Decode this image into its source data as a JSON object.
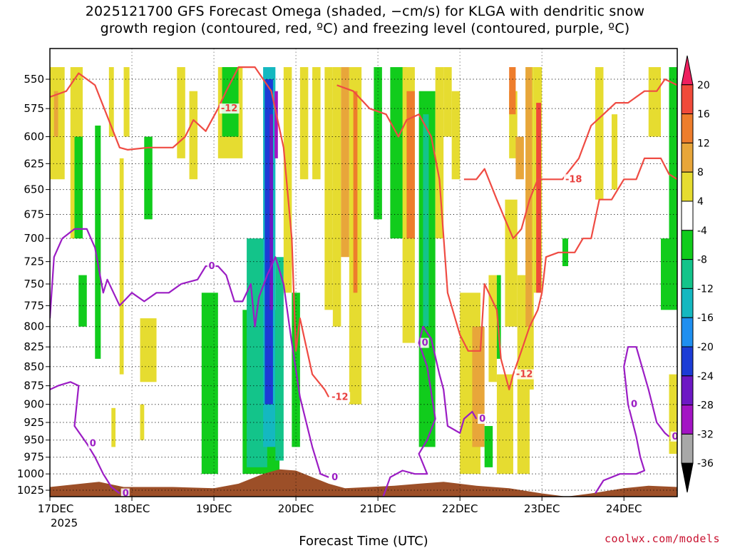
{
  "title_line1": "2025121700 GFS Forecast Omega (shaded, −cm/s) for KLGA with dendritic snow",
  "title_line2": "growth region (contoured, red, ºC) and freezing level (contoured, purple, ºC)",
  "watermark": "coolwx.com/models",
  "chart_data": {
    "type": "heatmap",
    "title": "2025121700 GFS Forecast Omega (shaded, −cm/s) for KLGA with dendritic snow growth region (contoured, red, ºC) and freezing level (contoured, purple, ºC)",
    "xlabel": "Forecast Time (UTC)",
    "ylabel": "",
    "x_start": "2025-12-17 00Z",
    "x_ticks": [
      "17DEC",
      "18DEC",
      "19DEC",
      "20DEC",
      "21DEC",
      "22DEC",
      "23DEC",
      "24DEC"
    ],
    "x_tick_sublabel": "2025",
    "x_range_days": [
      0,
      7.65
    ],
    "y_ticks": [
      550,
      575,
      600,
      625,
      650,
      675,
      700,
      725,
      750,
      775,
      800,
      825,
      850,
      875,
      900,
      925,
      950,
      975,
      1000,
      1025
    ],
    "ylim": [
      1035,
      525
    ],
    "y_scale": "log-pressure",
    "grid": true,
    "colorbar": {
      "levels": [
        20,
        16,
        12,
        8,
        4,
        -4,
        -8,
        -12,
        -16,
        -20,
        -24,
        -28,
        -32,
        -36
      ],
      "colors": [
        "#ee1f5f",
        "#f04a3a",
        "#ee7d2c",
        "#e8a63a",
        "#e6dc30",
        "#ffffff",
        "#11cc1c",
        "#13c48a",
        "#14b8c0",
        "#1f8ff0",
        "#1c3cd6",
        "#6d18c4",
        "#a314c4",
        "#a8a8a8",
        "#000000"
      ]
    },
    "omega_cells": [
      {
        "t0": 0.0,
        "t1": 0.18,
        "p0": 540,
        "p1": 640,
        "v": 6
      },
      {
        "t0": 0.05,
        "t1": 0.1,
        "p0": 560,
        "p1": 600,
        "v": 10
      },
      {
        "t0": 0.25,
        "t1": 0.4,
        "p0": 540,
        "p1": 700,
        "v": 6
      },
      {
        "t0": 0.55,
        "t1": 0.62,
        "p0": 590,
        "p1": 840,
        "v": -6
      },
      {
        "t0": 0.72,
        "t1": 0.78,
        "p0": 540,
        "p1": 600,
        "v": 6
      },
      {
        "t0": 0.85,
        "t1": 0.9,
        "p0": 620,
        "p1": 860,
        "v": 5
      },
      {
        "t0": 0.9,
        "t1": 0.97,
        "p0": 540,
        "p1": 600,
        "v": 5
      },
      {
        "t0": 1.15,
        "t1": 1.25,
        "p0": 600,
        "p1": 680,
        "v": -7
      },
      {
        "t0": 1.1,
        "t1": 1.3,
        "p0": 790,
        "p1": 870,
        "v": 5
      },
      {
        "t0": 0.3,
        "t1": 0.4,
        "p0": 600,
        "p1": 700,
        "v": -6
      },
      {
        "t0": 1.55,
        "t1": 1.65,
        "p0": 540,
        "p1": 620,
        "v": 6
      },
      {
        "t0": 1.7,
        "t1": 1.8,
        "p0": 560,
        "p1": 640,
        "v": 5
      },
      {
        "t0": 1.1,
        "t1": 1.15,
        "p0": 900,
        "p1": 950,
        "v": 5
      },
      {
        "t0": 0.75,
        "t1": 0.8,
        "p0": 905,
        "p1": 960,
        "v": 5
      },
      {
        "t0": 0.35,
        "t1": 0.45,
        "p0": 740,
        "p1": 800,
        "v": -6
      },
      {
        "t0": 1.85,
        "t1": 2.05,
        "p0": 760,
        "p1": 1000,
        "v": -6
      },
      {
        "t0": 2.05,
        "t1": 2.35,
        "p0": 540,
        "p1": 620,
        "v": 5
      },
      {
        "t0": 2.35,
        "t1": 2.8,
        "p0": 780,
        "p1": 1000,
        "v": -8
      },
      {
        "t0": 2.1,
        "t1": 2.3,
        "p0": 540,
        "p1": 600,
        "v": -6
      },
      {
        "t0": 2.4,
        "t1": 2.65,
        "p0": 700,
        "p1": 990,
        "v": -10
      },
      {
        "t0": 2.6,
        "t1": 2.75,
        "p0": 540,
        "p1": 960,
        "v": -14
      },
      {
        "t0": 2.62,
        "t1": 2.72,
        "p0": 550,
        "p1": 900,
        "v": -22
      },
      {
        "t0": 2.68,
        "t1": 2.72,
        "p0": 580,
        "p1": 780,
        "v": -26
      },
      {
        "t0": 2.74,
        "t1": 2.78,
        "p0": 560,
        "p1": 620,
        "v": -30
      },
      {
        "t0": 2.75,
        "t1": 2.85,
        "p0": 720,
        "p1": 980,
        "v": -10
      },
      {
        "t0": 2.85,
        "t1": 2.95,
        "p0": 540,
        "p1": 760,
        "v": 6
      },
      {
        "t0": 2.95,
        "t1": 3.05,
        "p0": 760,
        "p1": 960,
        "v": -8
      },
      {
        "t0": 3.05,
        "t1": 3.15,
        "p0": 540,
        "p1": 640,
        "v": 6
      },
      {
        "t0": 3.2,
        "t1": 3.3,
        "p0": 540,
        "p1": 640,
        "v": 6
      },
      {
        "t0": 3.35,
        "t1": 3.45,
        "p0": 540,
        "p1": 780,
        "v": 6
      },
      {
        "t0": 3.45,
        "t1": 3.55,
        "p0": 540,
        "p1": 800,
        "v": 6
      },
      {
        "t0": 3.55,
        "t1": 3.65,
        "p0": 540,
        "p1": 720,
        "v": 10
      },
      {
        "t0": 3.65,
        "t1": 3.8,
        "p0": 540,
        "p1": 900,
        "v": 6
      },
      {
        "t0": 3.7,
        "t1": 3.75,
        "p0": 560,
        "p1": 760,
        "v": 12
      },
      {
        "t0": 3.95,
        "t1": 4.05,
        "p0": 540,
        "p1": 680,
        "v": -7
      },
      {
        "t0": 4.15,
        "t1": 4.35,
        "p0": 540,
        "p1": 700,
        "v": -7
      },
      {
        "t0": 4.3,
        "t1": 4.45,
        "p0": 540,
        "p1": 820,
        "v": 6
      },
      {
        "t0": 4.35,
        "t1": 4.45,
        "p0": 560,
        "p1": 700,
        "v": 12
      },
      {
        "t0": 4.5,
        "t1": 4.7,
        "p0": 560,
        "p1": 960,
        "v": -8
      },
      {
        "t0": 4.55,
        "t1": 4.62,
        "p0": 580,
        "p1": 800,
        "v": -12
      },
      {
        "t0": 4.7,
        "t1": 4.8,
        "p0": 540,
        "p1": 700,
        "v": 6
      },
      {
        "t0": 4.8,
        "t1": 4.9,
        "p0": 540,
        "p1": 600,
        "v": 5
      },
      {
        "t0": 4.9,
        "t1": 5.0,
        "p0": 560,
        "p1": 640,
        "v": 5
      },
      {
        "t0": 5.05,
        "t1": 5.15,
        "p0": 920,
        "p1": 990,
        "v": 5
      },
      {
        "t0": 5.0,
        "t1": 5.25,
        "p0": 760,
        "p1": 1000,
        "v": 6
      },
      {
        "t0": 5.15,
        "t1": 5.3,
        "p0": 800,
        "p1": 960,
        "v": 10
      },
      {
        "t0": 5.35,
        "t1": 5.45,
        "p0": 740,
        "p1": 870,
        "v": 6
      },
      {
        "t0": 5.45,
        "t1": 5.5,
        "p0": 740,
        "p1": 840,
        "v": -6
      },
      {
        "t0": 5.3,
        "t1": 5.4,
        "p0": 930,
        "p1": 990,
        "v": -7
      },
      {
        "t0": 5.45,
        "t1": 5.65,
        "p0": 860,
        "p1": 1000,
        "v": 6
      },
      {
        "t0": 5.55,
        "t1": 5.7,
        "p0": 660,
        "p1": 800,
        "v": 6
      },
      {
        "t0": 5.6,
        "t1": 5.7,
        "p0": 560,
        "p1": 620,
        "v": 6
      },
      {
        "t0": 5.6,
        "t1": 5.68,
        "p0": 540,
        "p1": 580,
        "v": 12
      },
      {
        "t0": 5.7,
        "t1": 5.85,
        "p0": 740,
        "p1": 1000,
        "v": 6
      },
      {
        "t0": 5.8,
        "t1": 5.9,
        "p0": 540,
        "p1": 880,
        "v": 6
      },
      {
        "t0": 5.8,
        "t1": 5.88,
        "p0": 540,
        "p1": 800,
        "v": 10
      },
      {
        "t0": 5.9,
        "t1": 6.0,
        "p0": 540,
        "p1": 760,
        "v": 6
      },
      {
        "t0": 5.93,
        "t1": 5.99,
        "p0": 570,
        "p1": 760,
        "v": 16
      },
      {
        "t0": 5.68,
        "t1": 5.78,
        "p0": 600,
        "p1": 640,
        "v": 8
      },
      {
        "t0": 6.25,
        "t1": 6.32,
        "p0": 700,
        "p1": 730,
        "v": -7
      },
      {
        "t0": 6.65,
        "t1": 6.75,
        "p0": 540,
        "p1": 660,
        "v": 6
      },
      {
        "t0": 6.85,
        "t1": 6.92,
        "p0": 580,
        "p1": 650,
        "v": 5
      },
      {
        "t0": 7.3,
        "t1": 7.45,
        "p0": 540,
        "p1": 600,
        "v": 5
      },
      {
        "t0": 7.55,
        "t1": 7.65,
        "p0": 540,
        "p1": 780,
        "v": -6
      },
      {
        "t0": 7.45,
        "t1": 7.55,
        "p0": 700,
        "p1": 780,
        "v": -6
      },
      {
        "t0": 7.55,
        "t1": 7.65,
        "p0": 860,
        "p1": 970,
        "v": 5
      }
    ],
    "dgz_contours": [
      {
        "label": "-12",
        "points": [
          [
            0.0,
            565
          ],
          [
            0.2,
            560
          ],
          [
            0.35,
            545
          ],
          [
            0.55,
            555
          ],
          [
            0.85,
            610
          ],
          [
            0.95,
            612
          ],
          [
            1.2,
            610
          ],
          [
            1.5,
            610
          ],
          [
            1.65,
            600
          ],
          [
            1.75,
            585
          ],
          [
            1.9,
            595
          ],
          [
            2.05,
            575
          ],
          [
            2.15,
            560
          ],
          [
            2.3,
            540
          ],
          [
            2.5,
            540
          ],
          [
            2.7,
            560
          ],
          [
            2.85,
            610
          ],
          [
            2.95,
            700
          ],
          [
            3.0,
            830
          ],
          [
            3.05,
            790
          ],
          [
            3.2,
            860
          ],
          [
            3.35,
            880
          ],
          [
            3.4,
            890
          ]
        ]
      },
      {
        "label": "-12",
        "points": [
          [
            3.5,
            555
          ],
          [
            3.7,
            560
          ],
          [
            3.9,
            575
          ],
          [
            4.1,
            580
          ],
          [
            4.25,
            600
          ],
          [
            4.35,
            585
          ],
          [
            4.5,
            580
          ],
          [
            4.65,
            600
          ],
          [
            4.75,
            640
          ],
          [
            4.85,
            760
          ],
          [
            5.0,
            810
          ],
          [
            5.1,
            830
          ],
          [
            5.25,
            830
          ],
          [
            5.3,
            750
          ],
          [
            5.45,
            780
          ],
          [
            5.5,
            840
          ],
          [
            5.6,
            880
          ],
          [
            5.65,
            860
          ],
          [
            5.75,
            830
          ],
          [
            5.85,
            800
          ],
          [
            5.95,
            780
          ],
          [
            6.0,
            760
          ],
          [
            6.05,
            720
          ],
          [
            6.2,
            715
          ],
          [
            6.4,
            715
          ],
          [
            6.5,
            700
          ],
          [
            6.6,
            700
          ],
          [
            6.7,
            660
          ],
          [
            6.85,
            660
          ],
          [
            7.0,
            640
          ],
          [
            7.15,
            640
          ],
          [
            7.25,
            620
          ],
          [
            7.45,
            620
          ],
          [
            7.55,
            635
          ],
          [
            7.65,
            640
          ]
        ]
      },
      {
        "label": "-18",
        "points": [
          [
            5.05,
            640
          ],
          [
            5.2,
            640
          ],
          [
            5.3,
            630
          ],
          [
            5.45,
            660
          ],
          [
            5.55,
            680
          ],
          [
            5.65,
            700
          ],
          [
            5.75,
            690
          ],
          [
            5.85,
            660
          ],
          [
            5.95,
            640
          ],
          [
            6.1,
            640
          ],
          [
            6.25,
            640
          ],
          [
            6.45,
            620
          ],
          [
            6.6,
            590
          ],
          [
            6.75,
            580
          ],
          [
            6.9,
            570
          ],
          [
            7.05,
            570
          ],
          [
            7.25,
            560
          ],
          [
            7.4,
            560
          ],
          [
            7.5,
            550
          ],
          [
            7.65,
            555
          ]
        ]
      }
    ],
    "freezing_contours": [
      {
        "label": "0",
        "points": [
          [
            0.0,
            790
          ],
          [
            0.05,
            720
          ],
          [
            0.15,
            700
          ],
          [
            0.3,
            690
          ],
          [
            0.45,
            690
          ],
          [
            0.55,
            710
          ],
          [
            0.65,
            760
          ],
          [
            0.7,
            745
          ],
          [
            0.85,
            775
          ],
          [
            1.0,
            760
          ],
          [
            1.15,
            770
          ],
          [
            1.3,
            760
          ],
          [
            1.45,
            760
          ],
          [
            1.6,
            750
          ],
          [
            1.8,
            745
          ],
          [
            1.9,
            730
          ],
          [
            2.05,
            730
          ],
          [
            2.15,
            740
          ],
          [
            2.25,
            770
          ],
          [
            2.35,
            770
          ],
          [
            2.45,
            750
          ],
          [
            2.5,
            800
          ],
          [
            2.55,
            765
          ],
          [
            2.65,
            740
          ],
          [
            2.75,
            720
          ],
          [
            2.85,
            750
          ],
          [
            2.95,
            820
          ],
          [
            3.05,
            890
          ],
          [
            3.2,
            960
          ],
          [
            3.3,
            1000
          ],
          [
            3.4,
            1005
          ]
        ]
      },
      {
        "label": "0",
        "points": [
          [
            0.0,
            880
          ],
          [
            0.1,
            875
          ],
          [
            0.25,
            870
          ],
          [
            0.35,
            875
          ],
          [
            0.3,
            930
          ],
          [
            0.45,
            955
          ],
          [
            0.55,
            975
          ],
          [
            0.65,
            1000
          ],
          [
            0.75,
            1020
          ],
          [
            0.85,
            1030
          ]
        ]
      },
      {
        "label": "0",
        "points": [
          [
            4.05,
            1040
          ],
          [
            4.15,
            1005
          ],
          [
            4.3,
            995
          ],
          [
            4.45,
            1000
          ],
          [
            4.6,
            1000
          ],
          [
            4.5,
            970
          ],
          [
            4.6,
            950
          ],
          [
            4.7,
            920
          ],
          [
            4.6,
            850
          ],
          [
            4.5,
            820
          ],
          [
            4.55,
            800
          ],
          [
            4.65,
            815
          ],
          [
            4.75,
            860
          ],
          [
            4.8,
            880
          ],
          [
            4.85,
            930
          ],
          [
            5.0,
            940
          ],
          [
            5.05,
            920
          ],
          [
            5.15,
            910
          ],
          [
            5.2,
            920
          ]
        ]
      },
      {
        "label": "0",
        "points": [
          [
            6.65,
            1030
          ],
          [
            6.75,
            1010
          ],
          [
            6.95,
            1000
          ],
          [
            7.15,
            1000
          ],
          [
            7.25,
            995
          ],
          [
            7.2,
            975
          ],
          [
            7.15,
            945
          ],
          [
            7.05,
            900
          ],
          [
            7.0,
            850
          ],
          [
            7.05,
            825
          ],
          [
            7.15,
            825
          ],
          [
            7.3,
            880
          ],
          [
            7.4,
            925
          ],
          [
            7.5,
            940
          ],
          [
            7.55,
            945
          ]
        ]
      }
    ]
  }
}
